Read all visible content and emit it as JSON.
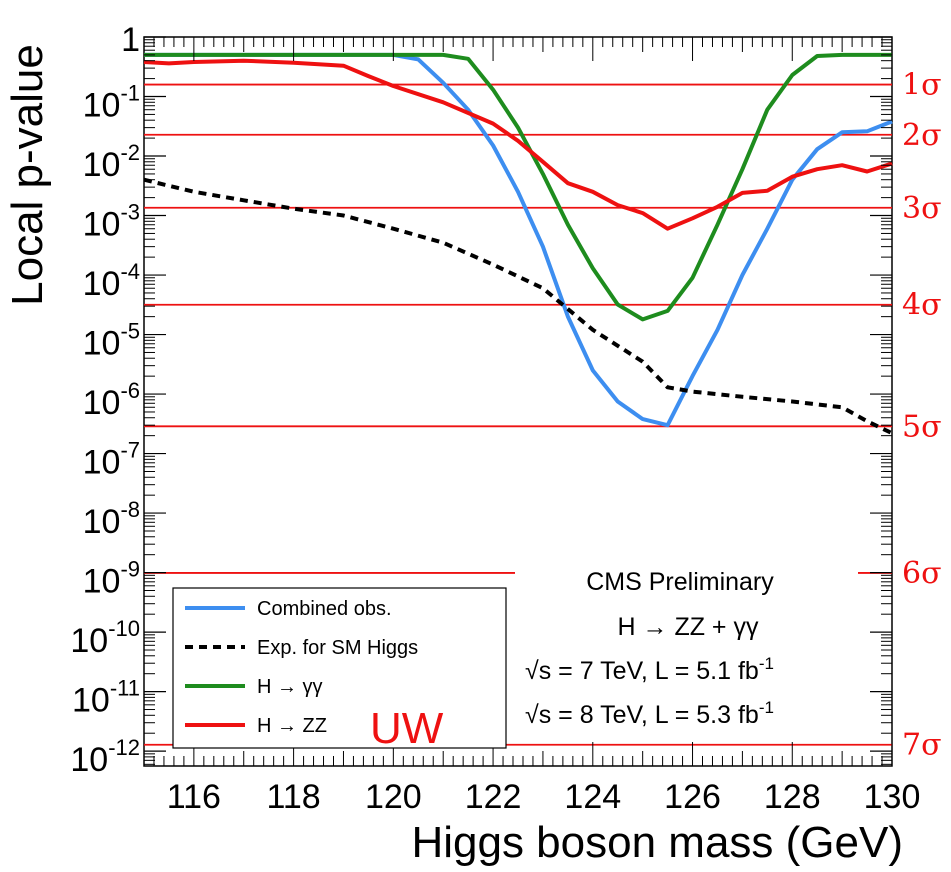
{
  "chart_data": {
    "type": "line",
    "xlabel": "Higgs boson mass (GeV)",
    "ylabel": "Local p-value",
    "xlim": [
      115,
      130
    ],
    "ylim_exponent": [
      -12.25,
      0
    ],
    "yscale": "log",
    "x_ticks": [
      "116",
      "118",
      "120",
      "122",
      "124",
      "126",
      "128",
      "130"
    ],
    "y_ticks": [
      {
        "base": "1",
        "exp": ""
      },
      {
        "base": "10",
        "exp": "-1"
      },
      {
        "base": "10",
        "exp": "-2"
      },
      {
        "base": "10",
        "exp": "-3"
      },
      {
        "base": "10",
        "exp": "-4"
      },
      {
        "base": "10",
        "exp": "-5"
      },
      {
        "base": "10",
        "exp": "-6"
      },
      {
        "base": "10",
        "exp": "-7"
      },
      {
        "base": "10",
        "exp": "-8"
      },
      {
        "base": "10",
        "exp": "-9"
      },
      {
        "base": "10",
        "exp": "-10"
      },
      {
        "base": "10",
        "exp": "-11"
      },
      {
        "base": "10",
        "exp": "-12"
      }
    ],
    "sigma_lines": [
      {
        "label": "1σ",
        "p": 0.1587
      },
      {
        "label": "2σ",
        "p": 0.02275
      },
      {
        "label": "3σ",
        "p": 0.00135
      },
      {
        "label": "4σ",
        "p": 3.17e-05
      },
      {
        "label": "5σ",
        "p": 2.87e-07
      },
      {
        "label": "6σ",
        "p": 9.87e-10
      },
      {
        "label": "7σ",
        "p": 1.28e-12
      }
    ],
    "series": [
      {
        "name": "Combined  obs.",
        "color": "#3d8ef0",
        "style": "solid",
        "points": [
          [
            115,
            0.5
          ],
          [
            116,
            0.5
          ],
          [
            117,
            0.5
          ],
          [
            118,
            0.5
          ],
          [
            119,
            0.5
          ],
          [
            120,
            0.5
          ],
          [
            120.5,
            0.42
          ],
          [
            121,
            0.17
          ],
          [
            121.5,
            0.06
          ],
          [
            122,
            0.015
          ],
          [
            122.5,
            0.0025
          ],
          [
            123,
            0.0003
          ],
          [
            123.5,
            2e-05
          ],
          [
            124,
            2.5e-06
          ],
          [
            124.5,
            7.5e-07
          ],
          [
            125,
            3.8e-07
          ],
          [
            125.5,
            3e-07
          ],
          [
            126,
            2e-06
          ],
          [
            126.5,
            1.2e-05
          ],
          [
            127,
            0.0001
          ],
          [
            127.5,
            0.0006
          ],
          [
            128,
            0.004
          ],
          [
            128.5,
            0.013
          ],
          [
            129,
            0.025
          ],
          [
            129.5,
            0.026
          ],
          [
            130,
            0.038
          ]
        ]
      },
      {
        "name": "Exp. for SM Higgs",
        "color": "#000000",
        "style": "dashed",
        "points": [
          [
            115,
            0.004
          ],
          [
            116,
            0.0025
          ],
          [
            117,
            0.0018
          ],
          [
            118,
            0.0013
          ],
          [
            119,
            0.001
          ],
          [
            120,
            0.0006
          ],
          [
            121,
            0.00035
          ],
          [
            122,
            0.00015
          ],
          [
            123,
            6e-05
          ],
          [
            124,
            1.2e-05
          ],
          [
            125,
            3.5e-06
          ],
          [
            125.5,
            1.3e-06
          ],
          [
            126,
            1.1e-06
          ],
          [
            127,
            9e-07
          ],
          [
            128,
            7.5e-07
          ],
          [
            129,
            6e-07
          ],
          [
            129.5,
            3.5e-07
          ],
          [
            130,
            2.2e-07
          ]
        ]
      },
      {
        "name": "H → γγ",
        "color": "#1e8c1e",
        "style": "solid",
        "points": [
          [
            115,
            0.5
          ],
          [
            116,
            0.5
          ],
          [
            117,
            0.5
          ],
          [
            118,
            0.5
          ],
          [
            119,
            0.5
          ],
          [
            120,
            0.5
          ],
          [
            120.5,
            0.5
          ],
          [
            121,
            0.5
          ],
          [
            121.5,
            0.43
          ],
          [
            122,
            0.13
          ],
          [
            122.5,
            0.03
          ],
          [
            123,
            0.005
          ],
          [
            123.5,
            0.0007
          ],
          [
            124,
            0.00013
          ],
          [
            124.5,
            3.2e-05
          ],
          [
            125,
            1.8e-05
          ],
          [
            125.5,
            2.5e-05
          ],
          [
            126,
            9e-05
          ],
          [
            126.5,
            0.0007
          ],
          [
            127,
            0.006
          ],
          [
            127.5,
            0.06
          ],
          [
            128,
            0.23
          ],
          [
            128.5,
            0.48
          ],
          [
            129,
            0.5
          ],
          [
            130,
            0.5
          ]
        ]
      },
      {
        "name": "H → ZZ",
        "color": "#ee1111",
        "style": "solid",
        "points": [
          [
            115,
            0.38
          ],
          [
            115.5,
            0.36
          ],
          [
            116,
            0.38
          ],
          [
            117,
            0.4
          ],
          [
            118,
            0.37
          ],
          [
            119,
            0.33
          ],
          [
            119.5,
            0.22
          ],
          [
            120,
            0.15
          ],
          [
            121,
            0.08
          ],
          [
            122,
            0.035
          ],
          [
            122.5,
            0.018
          ],
          [
            123,
            0.008
          ],
          [
            123.5,
            0.0035
          ],
          [
            124,
            0.0025
          ],
          [
            124.5,
            0.0015
          ],
          [
            125,
            0.0011
          ],
          [
            125.5,
            0.0006
          ],
          [
            126,
            0.0009
          ],
          [
            126.5,
            0.0014
          ],
          [
            127,
            0.0024
          ],
          [
            127.5,
            0.0026
          ],
          [
            128,
            0.0045
          ],
          [
            128.5,
            0.006
          ],
          [
            129,
            0.007
          ],
          [
            129.5,
            0.0055
          ],
          [
            130,
            0.0075
          ]
        ]
      }
    ],
    "annotations": {
      "line1": "CMS Preliminary",
      "line2": "H → ZZ + γγ",
      "line3_root": "√s",
      "line3_main": " = 7 TeV, L = 5.1 fb",
      "line3_sup": "-1",
      "line4_root": "√s",
      "line4_main": " = 8 TeV, L = 5.3 fb",
      "line4_sup": "-1",
      "watermark": "UW"
    },
    "legend_position": "bottom-left",
    "grid": false
  }
}
